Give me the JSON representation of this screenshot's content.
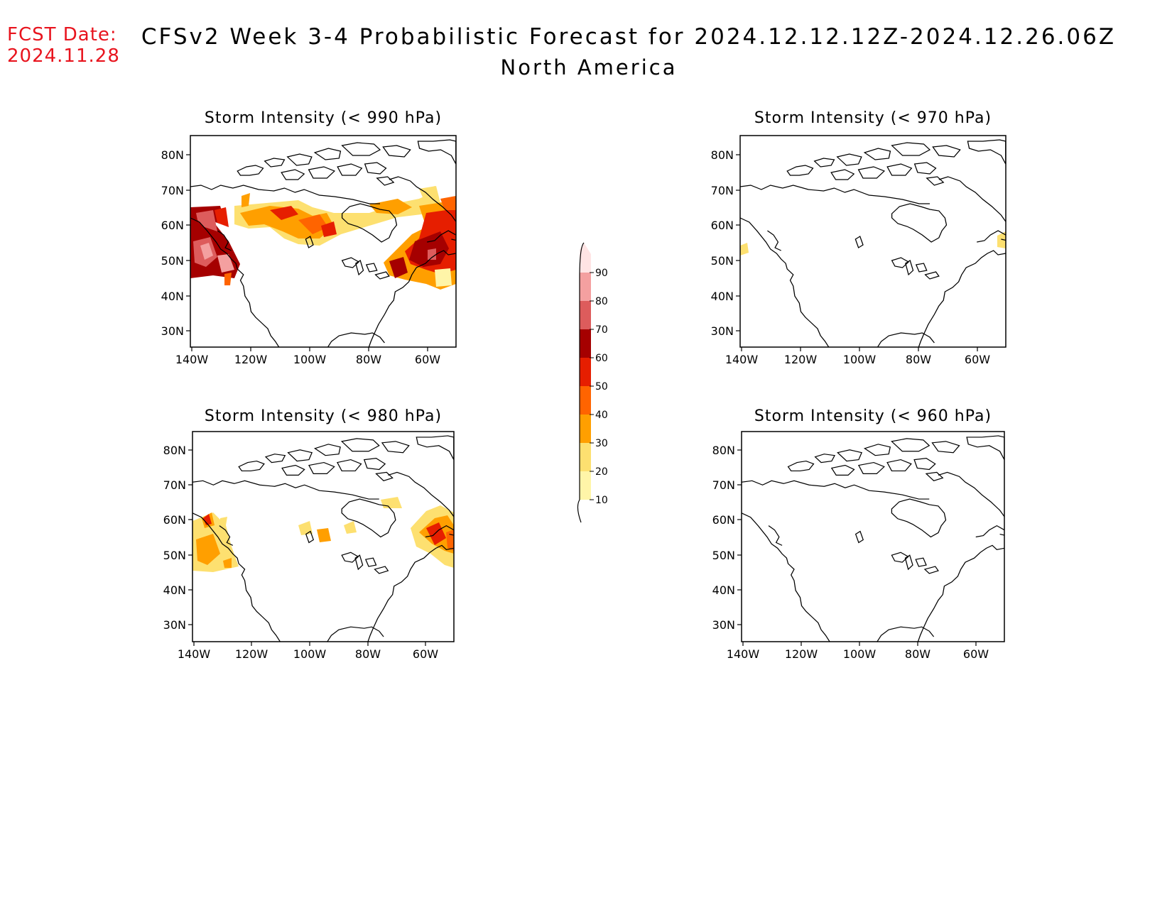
{
  "header": {
    "fcst_label": "FCST Date:",
    "fcst_date": "2024.11.28",
    "title": "CFSv2 Week 3-4 Probabilistic Forecast for 2024.12.12.12Z-2024.12.26.06Z",
    "region": "North America"
  },
  "panels": [
    {
      "id": "p990",
      "title": "Storm Intensity (< 990 hPa)"
    },
    {
      "id": "p970",
      "title": "Storm Intensity (< 970 hPa)"
    },
    {
      "id": "p980",
      "title": "Storm Intensity (< 980 hPa)"
    },
    {
      "id": "p960",
      "title": "Storm Intensity (< 960 hPa)"
    }
  ],
  "axes": {
    "lat_ticks": [
      "80N",
      "70N",
      "60N",
      "50N",
      "40N",
      "30N"
    ],
    "lon_ticks": [
      "140W",
      "120W",
      "100W",
      "80W",
      "60W"
    ]
  },
  "colorbar": {
    "levels": [
      "10",
      "20",
      "30",
      "40",
      "50",
      "60",
      "70",
      "80",
      "90"
    ],
    "colors": [
      "#fff5a8",
      "#fde070",
      "#ff9f00",
      "#ff6400",
      "#e61e00",
      "#a50000",
      "#dd5c5c",
      "#f4a0a0",
      "#ffe4e4"
    ]
  }
}
